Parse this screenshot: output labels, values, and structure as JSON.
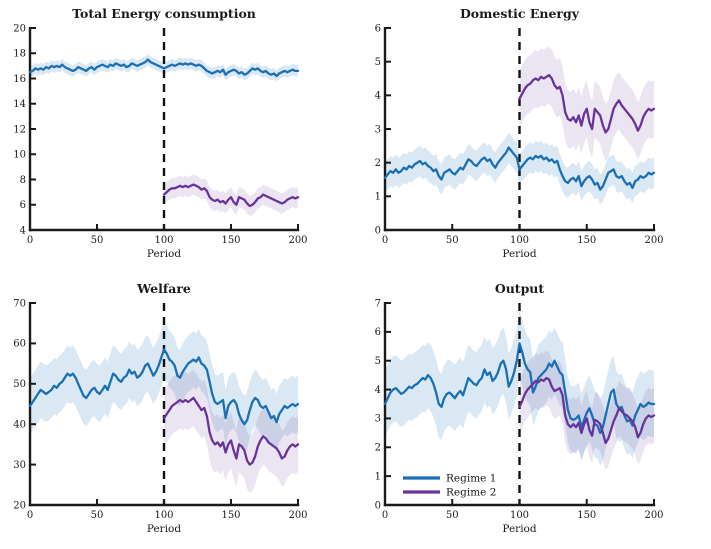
{
  "figure": {
    "background": "#ffffff"
  },
  "colors": {
    "regime1": "#1b6fb5",
    "regime2": "#68339a",
    "axis": "#1a1a1a",
    "dashed_line": "#111111"
  },
  "legend": {
    "items": [
      {
        "label": "Regime 1",
        "color": "#1b6fb5"
      },
      {
        "label": "Regime 2",
        "color": "#68339a"
      }
    ],
    "location": "bottom-left-of-output-chart",
    "border": "none"
  },
  "chart_data": [
    {
      "id": "total-energy-consumption",
      "type": "line",
      "title": "Total Energy consumption",
      "xlabel": "Period",
      "xlim": [
        0,
        200
      ],
      "ylim": [
        4,
        20
      ],
      "xticks": [
        0,
        50,
        100,
        150,
        200
      ],
      "yticks": [
        4,
        6,
        8,
        10,
        12,
        14,
        16,
        18,
        20
      ],
      "vline_x": 100,
      "grid": false,
      "show_legend": false,
      "series": [
        {
          "name": "Regime 1",
          "color": "#1b6fb5",
          "band": 0.45,
          "x_start": 0,
          "x_step": 2,
          "values": [
            16.5,
            16.6,
            16.8,
            16.7,
            16.8,
            16.7,
            16.9,
            16.8,
            17.0,
            16.9,
            17.0,
            16.9,
            17.1,
            16.9,
            16.8,
            16.7,
            16.6,
            16.7,
            16.9,
            16.8,
            16.7,
            16.6,
            16.8,
            16.9,
            16.7,
            16.9,
            17.0,
            17.1,
            17.0,
            16.9,
            17.1,
            17.0,
            17.2,
            17.1,
            17.0,
            17.1,
            16.9,
            17.0,
            17.2,
            17.1,
            17.0,
            17.1,
            17.2,
            17.3,
            17.5,
            17.3,
            17.2,
            17.1,
            17.0,
            16.9,
            16.8,
            16.9,
            17.0,
            17.1,
            17.0,
            17.1,
            17.2,
            17.1,
            17.2,
            17.1,
            17.2,
            17.1,
            17.0,
            17.1,
            17.0,
            16.8,
            16.6,
            16.5,
            16.4,
            16.5,
            16.6,
            16.5,
            16.7,
            16.3,
            16.5,
            16.6,
            16.7,
            16.6,
            16.4,
            16.5,
            16.3,
            16.4,
            16.6,
            16.8,
            16.7,
            16.8,
            16.6,
            16.5,
            16.6,
            16.4,
            16.3,
            16.4,
            16.2,
            16.4,
            16.5,
            16.6,
            16.5,
            16.6,
            16.7,
            16.6,
            16.6
          ]
        },
        {
          "name": "Regime 2",
          "color": "#68339a",
          "band": 0.8,
          "x_start": 100,
          "x_step": 2,
          "values": [
            6.8,
            7.0,
            7.2,
            7.3,
            7.3,
            7.4,
            7.5,
            7.4,
            7.5,
            7.4,
            7.5,
            7.6,
            7.5,
            7.4,
            7.2,
            7.3,
            7.1,
            6.6,
            6.4,
            6.3,
            6.4,
            6.2,
            6.3,
            6.1,
            6.4,
            6.6,
            6.2,
            6.0,
            6.6,
            6.5,
            6.4,
            6.1,
            5.9,
            6.0,
            6.2,
            6.5,
            6.6,
            6.8,
            6.7,
            6.6,
            6.5,
            6.4,
            6.3,
            6.2,
            6.1,
            6.2,
            6.4,
            6.5,
            6.6,
            6.5,
            6.6
          ]
        }
      ]
    },
    {
      "id": "domestic-energy",
      "type": "line",
      "title": "Domestic Energy",
      "xlabel": "Period",
      "xlim": [
        0,
        200
      ],
      "ylim": [
        0,
        6
      ],
      "xticks": [
        0,
        50,
        100,
        150,
        200
      ],
      "yticks": [
        0,
        1,
        2,
        3,
        4,
        5,
        6
      ],
      "vline_x": 100,
      "grid": false,
      "show_legend": false,
      "series": [
        {
          "name": "Regime 1",
          "color": "#1b6fb5",
          "band": 0.45,
          "x_start": 0,
          "x_step": 2,
          "values": [
            1.55,
            1.65,
            1.75,
            1.7,
            1.8,
            1.7,
            1.75,
            1.85,
            1.8,
            1.9,
            1.85,
            1.95,
            2.0,
            2.05,
            1.95,
            2.0,
            1.9,
            1.85,
            1.75,
            1.8,
            1.6,
            1.5,
            1.7,
            1.75,
            1.8,
            1.7,
            1.65,
            1.75,
            1.85,
            1.8,
            1.95,
            2.1,
            2.05,
            1.95,
            1.9,
            2.0,
            2.1,
            2.15,
            2.05,
            2.1,
            1.95,
            1.85,
            2.0,
            2.1,
            2.2,
            2.3,
            2.45,
            2.35,
            2.25,
            2.15,
            1.8,
            1.9,
            2.0,
            2.1,
            2.15,
            2.1,
            2.2,
            2.15,
            2.2,
            2.1,
            2.15,
            2.05,
            2.1,
            2.0,
            2.05,
            1.8,
            1.6,
            1.45,
            1.4,
            1.5,
            1.55,
            1.45,
            1.6,
            1.3,
            1.45,
            1.55,
            1.6,
            1.5,
            1.35,
            1.4,
            1.2,
            1.3,
            1.5,
            1.7,
            1.75,
            1.8,
            1.6,
            1.55,
            1.6,
            1.45,
            1.35,
            1.4,
            1.25,
            1.45,
            1.5,
            1.6,
            1.55,
            1.6,
            1.7,
            1.65,
            1.7
          ]
        },
        {
          "name": "Regime 2",
          "color": "#68339a",
          "band": 0.85,
          "x_start": 100,
          "x_step": 2,
          "values": [
            3.9,
            4.05,
            4.2,
            4.3,
            4.35,
            4.45,
            4.5,
            4.45,
            4.55,
            4.5,
            4.55,
            4.6,
            4.5,
            4.3,
            4.2,
            4.25,
            4.0,
            3.5,
            3.3,
            3.25,
            3.35,
            3.2,
            3.4,
            3.1,
            3.45,
            3.6,
            3.2,
            3.0,
            3.6,
            3.5,
            3.4,
            3.1,
            2.9,
            3.0,
            3.3,
            3.6,
            3.75,
            3.85,
            3.7,
            3.6,
            3.5,
            3.4,
            3.3,
            3.15,
            2.95,
            3.1,
            3.35,
            3.5,
            3.6,
            3.55,
            3.6
          ]
        }
      ]
    },
    {
      "id": "welfare",
      "type": "line",
      "title": "Welfare",
      "xlabel": "Period",
      "xlim": [
        0,
        200
      ],
      "ylim": [
        20,
        70
      ],
      "xticks": [
        0,
        50,
        100,
        150,
        200
      ],
      "yticks": [
        20,
        30,
        40,
        50,
        60,
        70
      ],
      "vline_x": 100,
      "grid": false,
      "show_legend": false,
      "series": [
        {
          "name": "Regime 1",
          "color": "#1b6fb5",
          "band": 7,
          "x_start": 0,
          "x_step": 2,
          "values": [
            44.5,
            45.5,
            46.5,
            47.5,
            48.5,
            48.0,
            47.5,
            48.0,
            48.5,
            49.5,
            49.0,
            50.0,
            50.5,
            51.5,
            52.5,
            52.0,
            52.5,
            51.5,
            50.0,
            48.5,
            47.0,
            46.5,
            47.5,
            48.5,
            49.0,
            48.0,
            47.5,
            48.5,
            49.5,
            48.5,
            50.5,
            52.5,
            52.0,
            51.0,
            50.5,
            51.5,
            52.0,
            53.5,
            52.5,
            53.0,
            51.5,
            52.0,
            53.0,
            54.5,
            55.0,
            53.5,
            52.0,
            53.0,
            54.5,
            56.5,
            58.5,
            57.5,
            56.0,
            55.5,
            54.5,
            52.0,
            51.5,
            53.0,
            54.0,
            55.0,
            55.5,
            56.0,
            55.5,
            56.5,
            55.0,
            54.5,
            53.5,
            50.5,
            47.5,
            45.5,
            45.0,
            45.5,
            46.0,
            41.5,
            44.5,
            45.5,
            46.0,
            45.0,
            42.5,
            41.0,
            40.0,
            41.0,
            43.5,
            45.5,
            46.5,
            46.0,
            44.5,
            44.0,
            44.5,
            43.0,
            41.5,
            42.0,
            40.5,
            42.5,
            43.5,
            44.5,
            44.0,
            44.5,
            45.0,
            44.5,
            45.0
          ]
        },
        {
          "name": "Regime 2",
          "color": "#68339a",
          "band": 7,
          "x_start": 100,
          "x_step": 2,
          "values": [
            41.5,
            42.5,
            43.5,
            44.5,
            45.0,
            45.5,
            46.0,
            45.5,
            46.0,
            45.5,
            46.0,
            46.5,
            45.5,
            44.5,
            43.5,
            44.0,
            42.0,
            38.0,
            36.0,
            35.0,
            35.5,
            34.5,
            35.5,
            33.0,
            35.0,
            36.0,
            33.5,
            31.5,
            35.0,
            34.5,
            33.5,
            31.0,
            30.0,
            30.5,
            32.0,
            34.5,
            36.0,
            37.0,
            36.5,
            35.5,
            35.0,
            34.5,
            34.0,
            33.0,
            31.5,
            32.0,
            33.5,
            34.5,
            35.0,
            34.5,
            35.0
          ]
        }
      ]
    },
    {
      "id": "output",
      "type": "line",
      "title": "Output",
      "xlabel": "Period",
      "xlim": [
        0,
        200
      ],
      "ylim": [
        0,
        7
      ],
      "xticks": [
        0,
        50,
        100,
        150,
        200
      ],
      "yticks": [
        0,
        1,
        2,
        3,
        4,
        5,
        6,
        7
      ],
      "vline_x": 100,
      "grid": false,
      "show_legend": true,
      "series": [
        {
          "name": "Regime 1",
          "color": "#1b6fb5",
          "band": 1.15,
          "x_start": 0,
          "x_step": 2,
          "values": [
            3.5,
            3.7,
            3.9,
            4.0,
            4.05,
            3.95,
            3.85,
            3.9,
            4.0,
            4.1,
            4.05,
            4.15,
            4.2,
            4.3,
            4.4,
            4.35,
            4.5,
            4.4,
            4.2,
            3.9,
            3.5,
            3.4,
            3.7,
            3.85,
            3.9,
            3.8,
            3.7,
            3.85,
            3.95,
            3.8,
            4.1,
            4.4,
            4.3,
            4.2,
            4.15,
            4.3,
            4.4,
            4.7,
            4.5,
            4.6,
            4.3,
            4.4,
            4.6,
            4.9,
            5.0,
            4.7,
            4.1,
            4.3,
            4.6,
            5.0,
            5.6,
            5.3,
            4.9,
            4.7,
            4.6,
            3.9,
            4.1,
            4.4,
            4.5,
            4.6,
            4.7,
            4.9,
            4.8,
            5.0,
            4.8,
            4.6,
            4.5,
            3.9,
            3.3,
            3.0,
            2.95,
            3.0,
            3.1,
            2.7,
            2.95,
            3.2,
            3.35,
            3.1,
            2.8,
            2.75,
            2.5,
            2.7,
            3.1,
            3.5,
            3.9,
            4.0,
            3.5,
            3.35,
            3.4,
            3.1,
            2.9,
            2.95,
            2.75,
            3.1,
            3.3,
            3.5,
            3.4,
            3.45,
            3.55,
            3.5,
            3.5
          ]
        },
        {
          "name": "Regime 2",
          "color": "#68339a",
          "band": 0.95,
          "x_start": 100,
          "x_step": 2,
          "values": [
            3.4,
            3.6,
            3.85,
            4.0,
            4.1,
            4.2,
            4.3,
            4.25,
            4.35,
            4.3,
            4.4,
            4.35,
            4.1,
            3.95,
            4.0,
            4.05,
            3.8,
            3.1,
            2.8,
            2.7,
            2.8,
            2.7,
            2.85,
            2.5,
            2.8,
            3.0,
            2.6,
            2.4,
            2.95,
            2.9,
            2.8,
            2.5,
            2.15,
            2.3,
            2.6,
            2.9,
            3.1,
            3.35,
            3.25,
            3.15,
            3.1,
            3.0,
            2.9,
            2.7,
            2.35,
            2.5,
            2.8,
            3.0,
            3.1,
            3.05,
            3.1
          ]
        }
      ]
    }
  ]
}
